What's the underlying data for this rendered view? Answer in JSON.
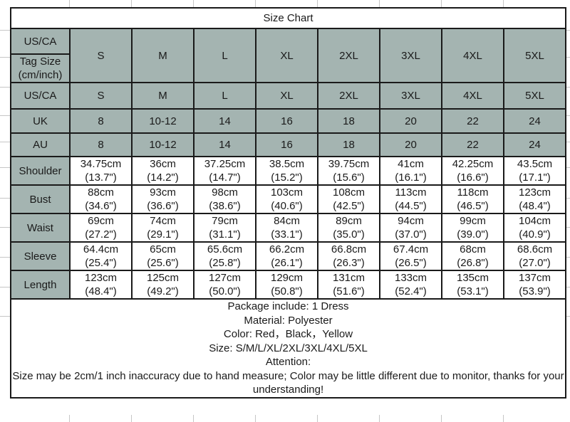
{
  "title": "Size Chart",
  "colors": {
    "header_bg": "#a4b4b1",
    "border": "#1a1a1a",
    "text": "#1a1a1a",
    "gridline": "#c6c6c6",
    "cell_bg": "#ffffff"
  },
  "header": {
    "us_ca": "US/CA",
    "tag_size_line1": "Tag Size",
    "tag_size_line2": "(cm/inch)",
    "sizes": [
      "S",
      "M",
      "L",
      "XL",
      "2XL",
      "3XL",
      "4XL",
      "5XL"
    ]
  },
  "size_rows": [
    {
      "label": "US/CA",
      "values": [
        "S",
        "M",
        "L",
        "XL",
        "2XL",
        "3XL",
        "4XL",
        "5XL"
      ]
    },
    {
      "label": "UK",
      "values": [
        "8",
        "10-12",
        "14",
        "16",
        "18",
        "20",
        "22",
        "24"
      ]
    },
    {
      "label": "AU",
      "values": [
        "8",
        "10-12",
        "14",
        "16",
        "18",
        "20",
        "22",
        "24"
      ]
    }
  ],
  "measure_rows": [
    {
      "label": "Shoulder",
      "cells": [
        {
          "cm": "34.75cm",
          "in": "(13.7\")"
        },
        {
          "cm": "36cm",
          "in": "(14.2\")"
        },
        {
          "cm": "37.25cm",
          "in": "(14.7\")"
        },
        {
          "cm": "38.5cm",
          "in": "(15.2\")"
        },
        {
          "cm": "39.75cm",
          "in": "(15.6\")"
        },
        {
          "cm": "41cm",
          "in": "(16.1\")"
        },
        {
          "cm": "42.25cm",
          "in": "(16.6\")"
        },
        {
          "cm": "43.5cm",
          "in": "(17.1\")"
        }
      ]
    },
    {
      "label": "Bust",
      "cells": [
        {
          "cm": "88cm",
          "in": "(34.6\")"
        },
        {
          "cm": "93cm",
          "in": "(36.6\")"
        },
        {
          "cm": "98cm",
          "in": "(38.6\")"
        },
        {
          "cm": "103cm",
          "in": "(40.6\")"
        },
        {
          "cm": "108cm",
          "in": "(42.5\")"
        },
        {
          "cm": "113cm",
          "in": "(44.5\")"
        },
        {
          "cm": "118cm",
          "in": "(46.5\")"
        },
        {
          "cm": "123cm",
          "in": "(48.4\")"
        }
      ]
    },
    {
      "label": "Waist",
      "cells": [
        {
          "cm": "69cm",
          "in": "(27.2\")"
        },
        {
          "cm": "74cm",
          "in": "(29.1\")"
        },
        {
          "cm": "79cm",
          "in": "(31.1\")"
        },
        {
          "cm": "84cm",
          "in": "(33.1\")"
        },
        {
          "cm": "89cm",
          "in": "(35.0\")"
        },
        {
          "cm": "94cm",
          "in": "(37.0\")"
        },
        {
          "cm": "99cm",
          "in": "(39.0\")"
        },
        {
          "cm": "104cm",
          "in": "(40.9\")"
        }
      ]
    },
    {
      "label": "Sleeve",
      "cells": [
        {
          "cm": "64.4cm",
          "in": "(25.4\")"
        },
        {
          "cm": "65cm",
          "in": "(25.6\")"
        },
        {
          "cm": "65.6cm",
          "in": "(25.8\")"
        },
        {
          "cm": "66.2cm",
          "in": "(26.1\")"
        },
        {
          "cm": "66.8cm",
          "in": "(26.3\")"
        },
        {
          "cm": "67.4cm",
          "in": "(26.5\")"
        },
        {
          "cm": "68cm",
          "in": "(26.8\")"
        },
        {
          "cm": "68.6cm",
          "in": "(27.0\")"
        }
      ]
    },
    {
      "label": "Length",
      "cells": [
        {
          "cm": "123cm",
          "in": "(48.4\")"
        },
        {
          "cm": "125cm",
          "in": "(49.2\")"
        },
        {
          "cm": "127cm",
          "in": "(50.0\")"
        },
        {
          "cm": "129cm",
          "in": "(50.8\")"
        },
        {
          "cm": "131cm",
          "in": "(51.6\")"
        },
        {
          "cm": "133cm",
          "in": "(52.4\")"
        },
        {
          "cm": "135cm",
          "in": "(53.1\")"
        },
        {
          "cm": "137cm",
          "in": "(53.9\")"
        }
      ]
    }
  ],
  "notes": {
    "lines": [
      "Package include: 1 Dress",
      "Material: Polyester",
      "Color: Red，Black，Yellow",
      "Size: S/M/L/XL/2XL/3XL/4XL/5XL",
      "Attention:",
      "Size may be 2cm/1 inch inaccuracy due to hand measure; Color may be little different due to monitor, thanks for your understanding!"
    ]
  }
}
